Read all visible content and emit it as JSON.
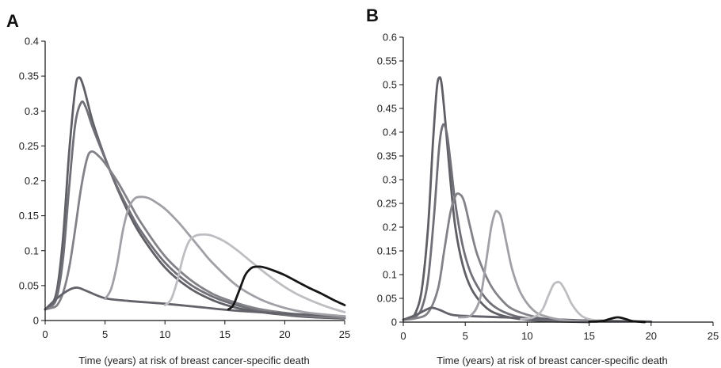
{
  "chart_data": [
    {
      "panel": "A",
      "type": "line",
      "xlabel": "Time (years) at risk of breast cancer-specific death",
      "ylabel": "",
      "xlim": [
        0,
        25
      ],
      "ylim": [
        0,
        0.4
      ],
      "xticks": [
        "0",
        "5",
        "10",
        "15",
        "20",
        "25"
      ],
      "yticks": [
        "0",
        "0.05",
        "0.1",
        "0.15",
        "0.2",
        "0.25",
        "0.3",
        "0.35",
        "0.4"
      ],
      "grid": false,
      "series": [
        {
          "color": "#5f5f66",
          "x": [
            0,
            0.5,
            1,
            1.5,
            2,
            2.5,
            2.8,
            3.2,
            4,
            5,
            6,
            7,
            8,
            10,
            12,
            14,
            16,
            18,
            20,
            22,
            25
          ],
          "y": [
            0.016,
            0.022,
            0.045,
            0.12,
            0.24,
            0.33,
            0.348,
            0.335,
            0.283,
            0.233,
            0.19,
            0.153,
            0.122,
            0.076,
            0.047,
            0.029,
            0.018,
            0.012,
            0.008,
            0.005,
            0.003
          ]
        },
        {
          "color": "#707078",
          "x": [
            0,
            0.5,
            1,
            1.5,
            2,
            2.5,
            3.0,
            3.4,
            4,
            5,
            6,
            7,
            8,
            10,
            12,
            14,
            16,
            18,
            20,
            22,
            25
          ],
          "y": [
            0.016,
            0.02,
            0.035,
            0.09,
            0.19,
            0.28,
            0.312,
            0.305,
            0.275,
            0.232,
            0.192,
            0.158,
            0.128,
            0.083,
            0.053,
            0.034,
            0.022,
            0.014,
            0.009,
            0.006,
            0.004
          ]
        },
        {
          "color": "#828288",
          "x": [
            0,
            0.5,
            1,
            1.5,
            2,
            2.5,
            3,
            3.5,
            3.9,
            4.5,
            5,
            6,
            7,
            8,
            10,
            12,
            14,
            16,
            18,
            20,
            22,
            25
          ],
          "y": [
            0.016,
            0.018,
            0.022,
            0.04,
            0.075,
            0.13,
            0.19,
            0.232,
            0.242,
            0.235,
            0.225,
            0.2,
            0.17,
            0.14,
            0.092,
            0.06,
            0.038,
            0.025,
            0.016,
            0.011,
            0.007,
            0.004
          ]
        },
        {
          "color": "#62626a",
          "x": [
            0,
            1,
            2,
            2.7,
            3.5,
            5,
            7,
            10,
            13,
            16,
            20,
            25
          ],
          "y": [
            0.016,
            0.032,
            0.044,
            0.047,
            0.042,
            0.032,
            0.028,
            0.024,
            0.019,
            0.014,
            0.01,
            0.006
          ]
        },
        {
          "color": "#a0a0a6",
          "x": [
            5.0,
            5.5,
            6,
            6.5,
            7,
            7.5,
            8.0,
            8.5,
            9,
            10,
            11,
            12,
            13,
            14,
            16,
            18,
            20,
            22,
            25
          ],
          "y": [
            0.031,
            0.045,
            0.08,
            0.13,
            0.162,
            0.175,
            0.177,
            0.176,
            0.172,
            0.16,
            0.143,
            0.123,
            0.102,
            0.082,
            0.05,
            0.03,
            0.018,
            0.011,
            0.006
          ]
        },
        {
          "color": "#bebec2",
          "x": [
            10.0,
            10.5,
            11,
            11.5,
            12,
            12.5,
            13,
            13.5,
            14,
            15,
            16,
            17,
            18,
            19,
            20,
            21,
            22,
            23,
            24,
            25
          ],
          "y": [
            0.022,
            0.03,
            0.055,
            0.09,
            0.113,
            0.121,
            0.123,
            0.123,
            0.121,
            0.113,
            0.101,
            0.087,
            0.073,
            0.06,
            0.048,
            0.038,
            0.03,
            0.023,
            0.017,
            0.012
          ]
        },
        {
          "color": "#161616",
          "x": [
            15.3,
            15.7,
            16.2,
            16.7,
            17.2,
            17.6,
            18,
            18.5,
            19,
            20,
            21,
            22,
            23,
            24,
            25
          ],
          "y": [
            0.016,
            0.022,
            0.043,
            0.065,
            0.075,
            0.077,
            0.077,
            0.075,
            0.072,
            0.065,
            0.056,
            0.047,
            0.039,
            0.03,
            0.022
          ]
        }
      ]
    },
    {
      "panel": "B",
      "type": "line",
      "xlabel": "Time (years) at risk of breast cancer-specific death",
      "ylabel": "",
      "xlim": [
        0,
        25
      ],
      "ylim": [
        0,
        0.6
      ],
      "xticks": [
        "0",
        "5",
        "10",
        "15",
        "20",
        "25"
      ],
      "yticks": [
        "0",
        "0.05",
        "0.1",
        "0.15",
        "0.2",
        "0.25",
        "0.3",
        "0.35",
        "0.4",
        "0.45",
        "0.5",
        "0.55",
        "0.6"
      ],
      "grid": false,
      "series": [
        {
          "color": "#5f5f66",
          "x": [
            0,
            0.5,
            1,
            1.5,
            2,
            2.4,
            2.7,
            2.9,
            3.1,
            3.4,
            3.8,
            4.2,
            4.8,
            5.5,
            6.5,
            7.5,
            9,
            11,
            13,
            15
          ],
          "y": [
            0.005,
            0.008,
            0.02,
            0.07,
            0.2,
            0.38,
            0.49,
            0.515,
            0.5,
            0.42,
            0.3,
            0.2,
            0.12,
            0.07,
            0.035,
            0.018,
            0.008,
            0.003,
            0.001,
            0.0
          ]
        },
        {
          "color": "#707078",
          "x": [
            0,
            0.5,
            1,
            1.5,
            2,
            2.5,
            2.9,
            3.2,
            3.5,
            3.8,
            4.2,
            4.8,
            5.5,
            6.5,
            7.5,
            9,
            11,
            13,
            15
          ],
          "y": [
            0.005,
            0.007,
            0.012,
            0.03,
            0.09,
            0.23,
            0.37,
            0.415,
            0.4,
            0.34,
            0.25,
            0.16,
            0.1,
            0.055,
            0.03,
            0.013,
            0.005,
            0.002,
            0.0
          ]
        },
        {
          "color": "#828288",
          "x": [
            0,
            1,
            2,
            2.8,
            3.3,
            3.8,
            4.2,
            4.5,
            4.9,
            5.4,
            6,
            7,
            8,
            9,
            11,
            13,
            15
          ],
          "y": [
            0.005,
            0.008,
            0.02,
            0.07,
            0.15,
            0.23,
            0.265,
            0.27,
            0.255,
            0.2,
            0.14,
            0.08,
            0.045,
            0.025,
            0.009,
            0.003,
            0.001
          ]
        },
        {
          "color": "#62626a",
          "x": [
            0,
            1,
            2,
            2.4,
            3,
            4,
            6,
            8,
            10,
            12,
            14,
            16,
            18,
            20
          ],
          "y": [
            0.005,
            0.015,
            0.028,
            0.03,
            0.025,
            0.015,
            0.012,
            0.01,
            0.008,
            0.006,
            0.004,
            0.003,
            0.002,
            0.001
          ]
        },
        {
          "color": "#a0a0a6",
          "x": [
            4.5,
            5.5,
            6.2,
            6.7,
            7.1,
            7.4,
            7.6,
            7.9,
            8.3,
            8.8,
            9.5,
            10.5,
            11.5,
            13,
            15
          ],
          "y": [
            0.01,
            0.015,
            0.05,
            0.13,
            0.2,
            0.23,
            0.233,
            0.22,
            0.17,
            0.11,
            0.06,
            0.025,
            0.012,
            0.004,
            0.001
          ]
        },
        {
          "color": "#bebec2",
          "x": [
            9.5,
            10.5,
            11.2,
            11.7,
            12.1,
            12.4,
            12.7,
            13.1,
            13.6,
            14.3,
            15,
            16
          ],
          "y": [
            0.006,
            0.01,
            0.025,
            0.055,
            0.078,
            0.084,
            0.082,
            0.065,
            0.038,
            0.015,
            0.006,
            0.002
          ]
        },
        {
          "color": "#161616",
          "x": [
            15,
            16,
            16.6,
            17.0,
            17.3,
            17.6,
            18.0,
            18.5,
            19.5
          ],
          "y": [
            0.001,
            0.002,
            0.006,
            0.009,
            0.01,
            0.009,
            0.006,
            0.002,
            0.0
          ]
        }
      ]
    }
  ]
}
